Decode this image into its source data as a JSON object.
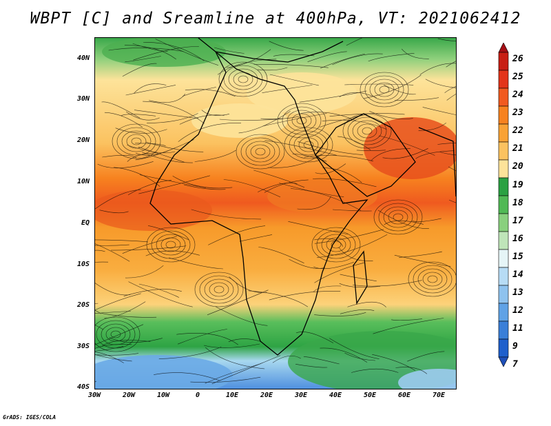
{
  "title": "WBPT [C] and Sreamline at 400hPa, VT: 2021062412",
  "credit": "GrADS: IGES/COLA",
  "map": {
    "lat_labels": [
      "40N",
      "30N",
      "20N",
      "10N",
      "EQ",
      "10S",
      "20S",
      "30S",
      "40S"
    ],
    "lon_labels": [
      "30W",
      "20W",
      "10W",
      "0",
      "10E",
      "20E",
      "30E",
      "40E",
      "50E",
      "60E",
      "70E"
    ],
    "lat_range": [
      -40,
      45
    ],
    "lon_range": [
      -30,
      75
    ]
  },
  "colorbar": {
    "labels": [
      "26",
      "25",
      "24",
      "23",
      "22",
      "21",
      "20",
      "19",
      "18",
      "17",
      "16",
      "15",
      "14",
      "13",
      "12",
      "11",
      "9",
      "7"
    ],
    "colors": [
      "#a50f15",
      "#c81e14",
      "#e3341a",
      "#f15a1f",
      "#f7821f",
      "#f9a235",
      "#fbc260",
      "#fde39a",
      "#2aa142",
      "#50b955",
      "#89d07e",
      "#bfe5b9",
      "#e6f5f7",
      "#b7dcf5",
      "#8ec2ee",
      "#5fa2e6",
      "#3a7fd8",
      "#1e5fcc",
      "#1e4fb8"
    ]
  }
}
